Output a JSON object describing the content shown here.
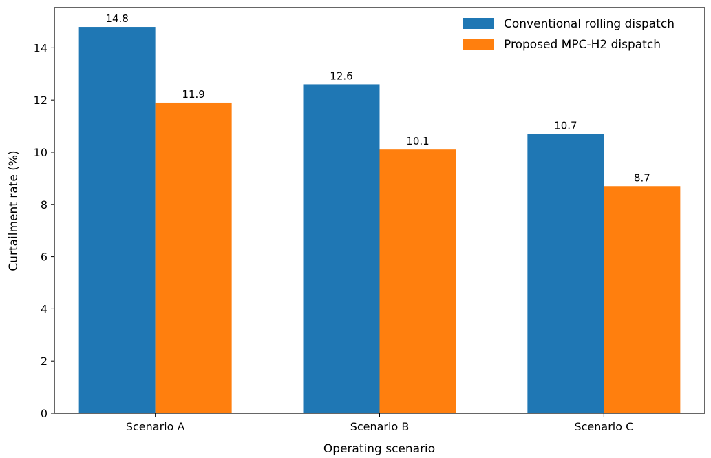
{
  "chart_data": {
    "type": "bar",
    "title": "",
    "xlabel": "Operating scenario",
    "ylabel": "Curtailment rate (%)",
    "categories": [
      "Scenario A",
      "Scenario B",
      "Scenario C"
    ],
    "series": [
      {
        "name": "Conventional rolling dispatch",
        "color": "#1f77b4",
        "values": [
          14.8,
          12.6,
          10.7
        ],
        "labels": [
          "14.8",
          "12.6",
          "10.7"
        ]
      },
      {
        "name": "Proposed MPC-H2 dispatch",
        "color": "#ff7f0e",
        "values": [
          11.9,
          10.1,
          8.7
        ],
        "labels": [
          "11.9",
          "10.1",
          "8.7"
        ]
      }
    ],
    "ylim": [
      0,
      15.54
    ],
    "yticks": [
      0,
      2,
      4,
      6,
      8,
      10,
      12,
      14
    ],
    "grid": false,
    "legend_position": "top-right"
  }
}
